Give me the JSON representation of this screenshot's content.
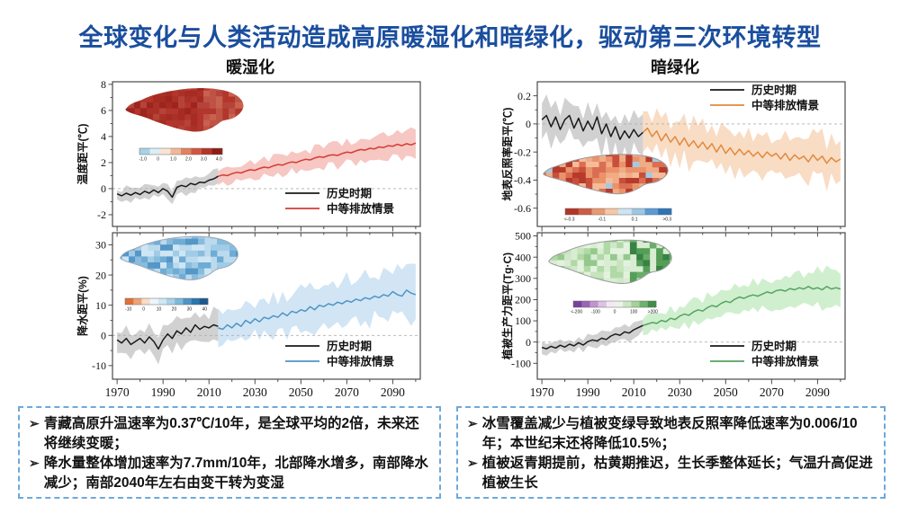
{
  "title": "全球变化与人类活动造成高原暖湿化和暗绿化，驱动第三次环境转型",
  "title_color": "#1a4e9e",
  "sections": [
    {
      "label": "暖湿化"
    },
    {
      "label": "暗绿化"
    }
  ],
  "legend": {
    "historical": "历史时期",
    "scenario": "中等排放情景"
  },
  "bullet": "➢",
  "colors": {
    "hist_line": "#1a1a1a",
    "hist_band": "#c9c9c9",
    "frame": "#3a3a3a",
    "zero_line": "#b0b0b0",
    "note_border": "#6fa8dc"
  },
  "xticks": [
    "1970",
    "1990",
    "2010",
    "2030",
    "2050",
    "2070",
    "2090"
  ],
  "xlim": [
    1968,
    2102
  ],
  "chart_data": [
    {
      "type": "line",
      "id": "temperature-anomaly",
      "ylabel": "温度距平(℃)",
      "ylim": [
        -2.9,
        8.2
      ],
      "yticks": [
        "8",
        "6",
        "4",
        "2",
        "0",
        "-2"
      ],
      "x_start": 1970,
      "x_step": 2,
      "future_start": 2014,
      "hist": [
        -0.4,
        -0.55,
        -0.35,
        -0.5,
        -0.3,
        -0.45,
        -0.2,
        -0.35,
        -0.1,
        -0.3,
        0.0,
        -0.2,
        -0.65,
        0.1,
        0.25,
        0.15,
        0.4,
        0.3,
        0.5,
        0.45,
        0.65,
        0.75,
        0.95
      ],
      "future": [
        0.95,
        1.05,
        1.0,
        1.15,
        1.25,
        1.2,
        1.35,
        1.45,
        1.4,
        1.55,
        1.65,
        1.6,
        1.75,
        1.85,
        1.8,
        1.95,
        2.05,
        2.0,
        2.15,
        2.25,
        2.2,
        2.35,
        2.45,
        2.4,
        2.55,
        2.6,
        2.55,
        2.7,
        2.8,
        2.75,
        2.9,
        3.0,
        2.95,
        3.1,
        3.05,
        3.2,
        3.15,
        3.3,
        3.25,
        3.4,
        3.3,
        3.45,
        3.35,
        3.5
      ],
      "hist_band": [
        0.45,
        0.55
      ],
      "future_band": [
        0.55,
        1.0
      ],
      "line_color": "#d43c35",
      "band_color": "#f5bdb8",
      "legend_anchor": "br",
      "has_xlabels": false,
      "seed": 1,
      "inset": {
        "map": {
          "x": 52,
          "y": 8,
          "w": 140,
          "h": 66
        },
        "base": "#b2362c",
        "palette": [
          "#9c241f",
          "#aa3127",
          "#b5443a",
          "#a52c23"
        ],
        "east_palette": [
          "#bf5547",
          "#c9644f",
          "#b5443a"
        ],
        "bias": "east_light",
        "outline": "none",
        "cbar": {
          "x": 72,
          "y": 79,
          "w": 92,
          "h": 7,
          "colors": [
            "#a8d2e8",
            "#dceef5",
            "#f8e3d6",
            "#f2b795",
            "#e2825f",
            "#cf5742",
            "#b23527",
            "#8f1d15"
          ],
          "labels": [
            "-1.0",
            "0",
            "1.0",
            "2.0",
            "3.0",
            "4.0"
          ]
        }
      }
    },
    {
      "type": "line",
      "id": "precipitation-anomaly",
      "ylabel": "降水距平(%)",
      "ylim": [
        -14.5,
        34
      ],
      "yticks": [
        "30",
        "20",
        "10",
        "0",
        "-10"
      ],
      "x_start": 1970,
      "x_step": 2,
      "future_start": 2014,
      "hist": [
        -1.5,
        -2.5,
        -1,
        -3,
        -2,
        -1,
        -2.5,
        -0.5,
        -2,
        -4.5,
        -1.5,
        0.5,
        -1,
        1.5,
        0.5,
        2.5,
        1,
        3.5,
        2,
        3,
        2.5,
        3.5,
        3
      ],
      "future": [
        2.5,
        2,
        3.5,
        2.5,
        4,
        3,
        5,
        4,
        5.5,
        4.5,
        6,
        5.5,
        6.5,
        6,
        7.5,
        6.5,
        8,
        7.5,
        8.5,
        8,
        9.5,
        8.5,
        10,
        9.5,
        10.5,
        10,
        11,
        10.5,
        11.5,
        11,
        12,
        11.5,
        12.5,
        12,
        13,
        12.5,
        13.5,
        13,
        14.5,
        13.5,
        13,
        15,
        14,
        13.5
      ],
      "hist_band": [
        3.5,
        4.5
      ],
      "future_band": [
        5,
        8
      ],
      "line_color": "#4f94c4",
      "band_color": "#c9e0f2",
      "legend_anchor": "br",
      "has_xlabels": true,
      "seed": 2,
      "inset": {
        "map": {
          "x": 46,
          "y": 5,
          "w": 140,
          "h": 66
        },
        "base": "#bcdaed",
        "palette": [
          "#9fcbe6",
          "#85bbdd",
          "#6aaad2",
          "#4f94c4",
          "#cfe6f4"
        ],
        "east_palette": [],
        "bias": "none",
        "outline": "#9aa8b5",
        "cbar": {
          "x": 56,
          "y": 78,
          "w": 92,
          "h": 7,
          "colors": [
            "#e2703a",
            "#efa277",
            "#f8dcc8",
            "#eef5fa",
            "#cfe6f4",
            "#a9d1e8",
            "#7db8da",
            "#4f94c4",
            "#2a76ad",
            "#1a5a8e"
          ],
          "labels": [
            "-10",
            "0",
            "10",
            "20",
            "30",
            "40"
          ]
        }
      }
    },
    {
      "type": "line",
      "id": "surface-albedo-anomaly",
      "ylabel": "地表反照率距平(℃)",
      "ylim": [
        -0.73,
        0.3
      ],
      "yticks": [
        "0.2",
        "0",
        "-0.2",
        "-0.4",
        "-0.6"
      ],
      "x_start": 1970,
      "x_step": 2,
      "future_start": 2014,
      "hist": [
        0.03,
        0.06,
        -0.02,
        0.05,
        -0.04,
        0.03,
        0.06,
        -0.03,
        0.04,
        -0.05,
        0.02,
        -0.04,
        0.05,
        -0.07,
        0.0,
        -0.09,
        -0.02,
        -0.11,
        -0.05,
        -0.1,
        -0.04,
        -0.09,
        -0.06
      ],
      "future": [
        -0.06,
        -0.03,
        -0.09,
        -0.05,
        -0.12,
        -0.07,
        -0.13,
        -0.09,
        -0.15,
        -0.1,
        -0.16,
        -0.12,
        -0.17,
        -0.13,
        -0.18,
        -0.14,
        -0.2,
        -0.15,
        -0.21,
        -0.17,
        -0.22,
        -0.18,
        -0.22,
        -0.19,
        -0.23,
        -0.2,
        -0.24,
        -0.2,
        -0.23,
        -0.21,
        -0.25,
        -0.21,
        -0.26,
        -0.22,
        -0.25,
        -0.23,
        -0.27,
        -0.22,
        -0.26,
        -0.23,
        -0.28,
        -0.24,
        -0.27,
        -0.25
      ],
      "hist_band": [
        0.12,
        0.13
      ],
      "future_band": [
        0.13,
        0.15
      ],
      "line_color": "#df8a3e",
      "band_color": "#f8d6ba",
      "legend_anchor": "tr",
      "has_xlabels": false,
      "seed": 3,
      "inset": {
        "map": {
          "x": 44,
          "y": 82,
          "w": 148,
          "h": 60
        },
        "base": "#f0ac85",
        "palette": [
          "#b23527",
          "#c54a38",
          "#d96a4f",
          "#ea9068",
          "#f3bd9b"
        ],
        "east_palette": [],
        "bias": "none",
        "rare": "#9fcbe6",
        "outline": "#999999",
        "cbar": {
          "x": 73,
          "y": 146,
          "w": 118,
          "h": 7,
          "colors": [
            "#b23527",
            "#cd5c45",
            "#e89a72",
            "#f6c7a6",
            "#cfe4f2",
            "#9cc8e6",
            "#5b9bd5",
            "#2e75b6"
          ],
          "labels": [
            "<-0.3",
            "-0.1",
            "0.1",
            ">0.3"
          ]
        }
      }
    },
    {
      "type": "line",
      "id": "vegetation-productivity-anomaly",
      "ylabel": "植被生产力距平(Tg·C)",
      "ylim": [
        -175,
        515
      ],
      "yticks": [
        "500",
        "400",
        "300",
        "200",
        "100",
        "0",
        "-100"
      ],
      "x_start": 1970,
      "x_step": 2,
      "future_start": 2014,
      "hist": [
        -25,
        -32,
        -20,
        -28,
        -15,
        -24,
        -10,
        -18,
        -3,
        -14,
        2,
        10,
        5,
        18,
        12,
        28,
        38,
        32,
        48,
        42,
        58,
        68,
        78
      ],
      "future": [
        78,
        85,
        92,
        88,
        102,
        96,
        112,
        106,
        122,
        132,
        126,
        142,
        152,
        146,
        162,
        172,
        166,
        182,
        192,
        186,
        202,
        212,
        206,
        216,
        222,
        216,
        226,
        236,
        230,
        242,
        246,
        240,
        252,
        246,
        256,
        250,
        262,
        250,
        256,
        246,
        262,
        250,
        256,
        250
      ],
      "hist_band": [
        25,
        32
      ],
      "future_band": [
        38,
        85
      ],
      "line_color": "#55a361",
      "band_color": "#c8ecc6",
      "legend_anchor": "br",
      "has_xlabels": true,
      "seed": 4,
      "inset": {
        "map": {
          "x": 50,
          "y": 9,
          "w": 146,
          "h": 66
        },
        "base": "#d9edd3",
        "palette": [
          "#c6e4bc",
          "#aed8a2",
          "#90c787",
          "#cfe8c8",
          "#e4f2de"
        ],
        "east_palette": [
          "#4e9a51",
          "#2f7d3b",
          "#63aa66"
        ],
        "bias": "east_dark",
        "outline": "#999999",
        "cbar": {
          "x": 82,
          "y": 81,
          "w": 92,
          "h": 7,
          "colors": [
            "#7b3f9e",
            "#9b64b5",
            "#c094cf",
            "#ddc2e4",
            "#f2e8f4",
            "#eaf4e6",
            "#cbe6c2",
            "#a3d297",
            "#6fb26f",
            "#3f8f49"
          ],
          "labels": [
            "<-200",
            "-100",
            "0",
            "100",
            ">200"
          ]
        }
      }
    }
  ],
  "notes_left": {
    "items": [
      "青藏高原升温速率为0.37℃/10年，是全球平均的2倍，未来还将继续变暖；",
      "降水量整体增加速率为7.7mm/10年，北部降水增多，南部降水减少；南部2040年左右由变干转为变湿"
    ]
  },
  "notes_right": {
    "items": [
      "冰雪覆盖减少与植被变绿导致地表反照率降低速率为0.006/10年；本世纪末还将降低10.5%；",
      "植被返青期提前，枯黄期推迟，生长季整体延长；气温升高促进植被生长"
    ]
  }
}
